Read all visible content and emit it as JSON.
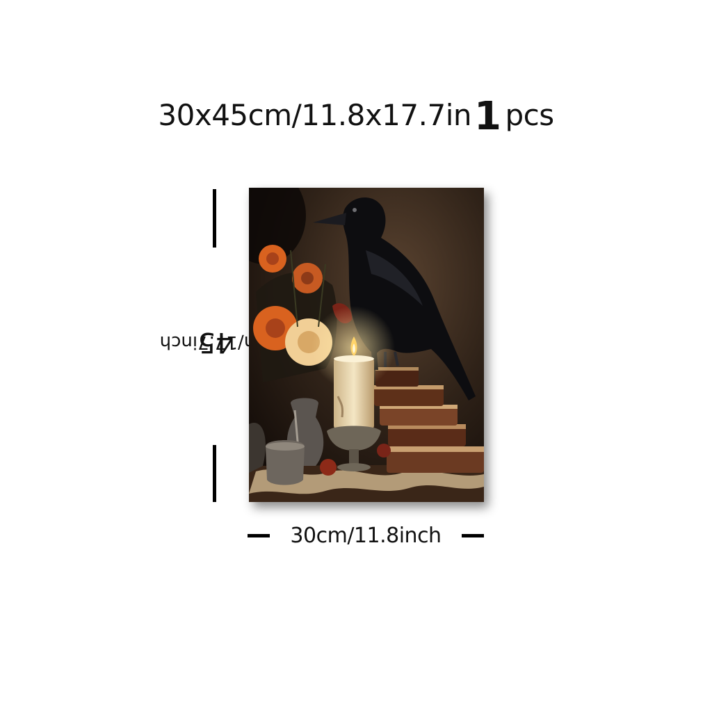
{
  "headline": {
    "size_text": "30x45cm/11.8x17.7in",
    "quantity_number": "1",
    "quantity_unit": "pcs"
  },
  "dimensions": {
    "height_value": "45",
    "height_label": "cm/17.7inch",
    "width_label": "30cm/11.8inch"
  },
  "artwork": {
    "subject": "raven-candle-books-flowers-painting",
    "colors": {
      "background": "#2a1d14",
      "raven": "#0d0d10",
      "flower_orange": "#d9621f",
      "flower_cream": "#f1cf96",
      "candle": "#eedcb4",
      "flame": "#ffd46a",
      "books": "#6b3a22",
      "table_cloth": "#c9b08a"
    }
  }
}
